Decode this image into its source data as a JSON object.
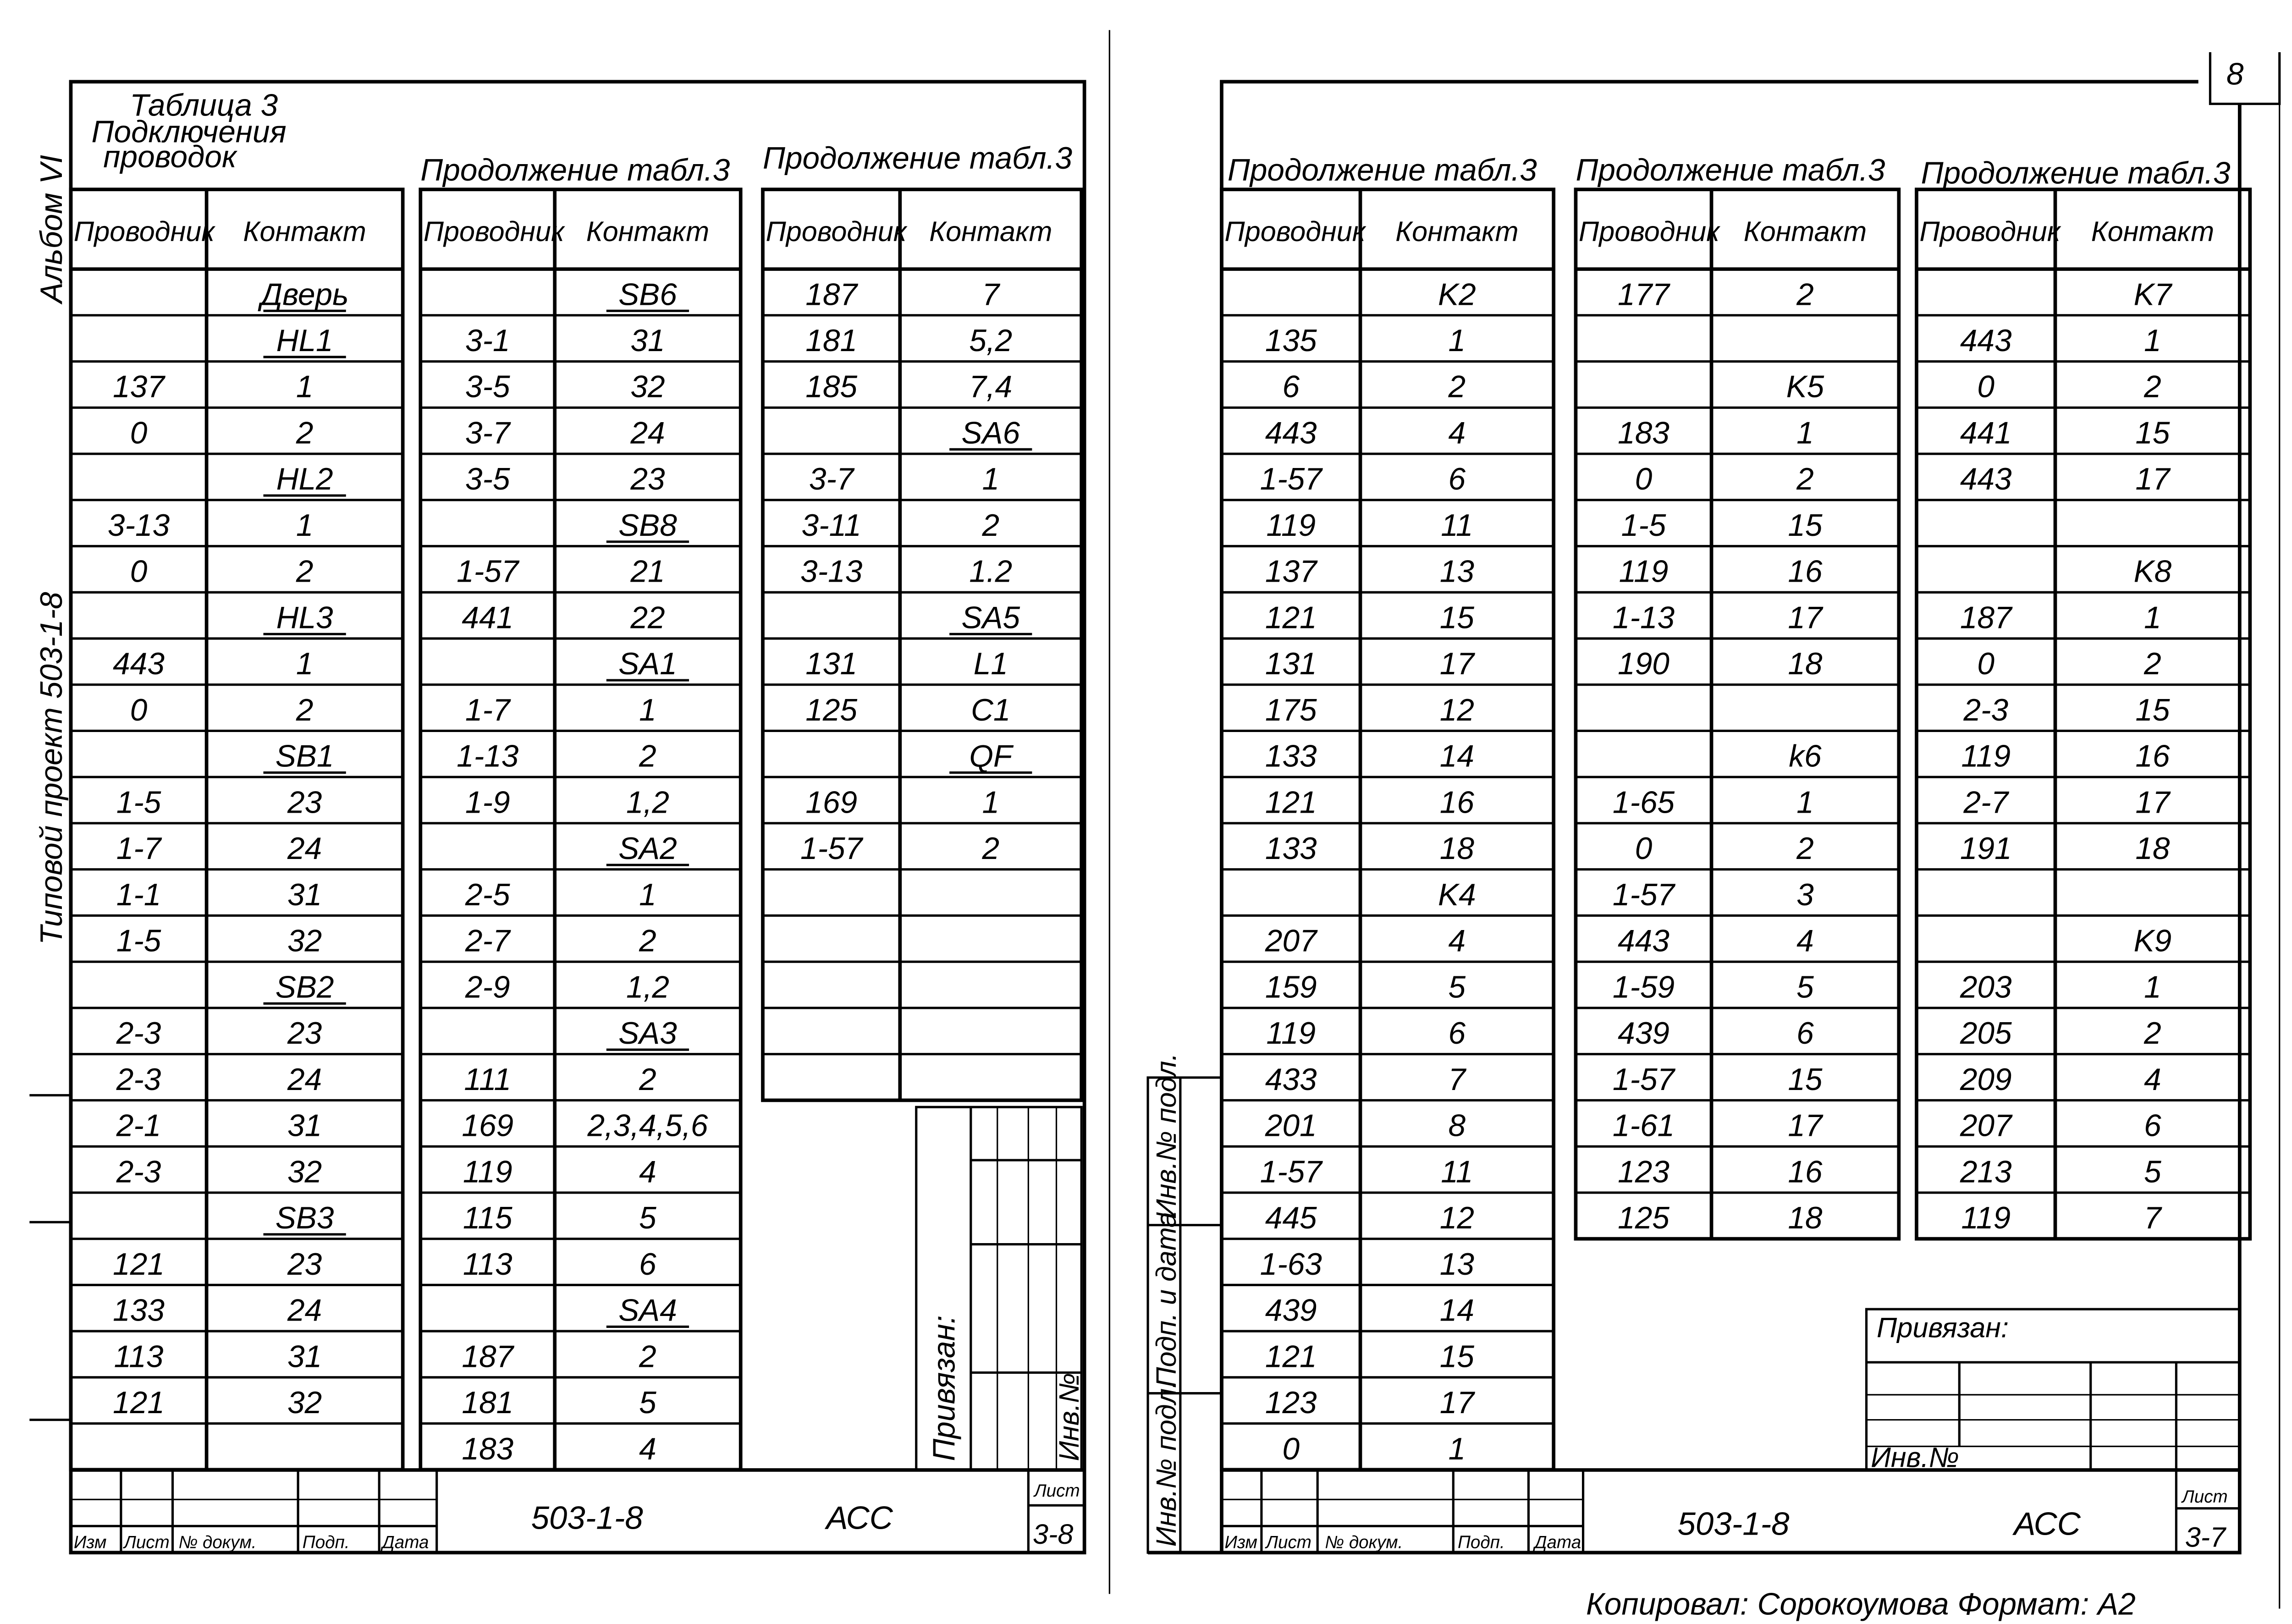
{
  "page_number": "8",
  "left_sheet": {
    "margin_album": "Альбом VI",
    "margin_project": "Типовой проект 503-1-8",
    "table_caption": [
      "Таблица 3",
      "Подключения",
      "проводок"
    ],
    "continuation_caption": "Продолжение табл.3",
    "column_headers": {
      "wire": "Проводник",
      "contact": "Контакт"
    },
    "tables": [
      {
        "rows": [
          [
            "",
            "Дверь"
          ],
          [
            "",
            "HL1"
          ],
          [
            "137",
            "1"
          ],
          [
            "0",
            "2"
          ],
          [
            "",
            "HL2"
          ],
          [
            "3-13",
            "1"
          ],
          [
            "0",
            "2"
          ],
          [
            "",
            "HL3"
          ],
          [
            "443",
            "1"
          ],
          [
            "0",
            "2"
          ],
          [
            "",
            "SB1"
          ],
          [
            "1-5",
            "23"
          ],
          [
            "1-7",
            "24"
          ],
          [
            "1-1",
            "31"
          ],
          [
            "1-5",
            "32"
          ],
          [
            "",
            "SB2"
          ],
          [
            "2-3",
            "23"
          ],
          [
            "2-3",
            "24"
          ],
          [
            "2-1",
            "31"
          ],
          [
            "2-3",
            "32"
          ],
          [
            "",
            "SB3"
          ],
          [
            "121",
            "23"
          ],
          [
            "133",
            "24"
          ],
          [
            "113",
            "31"
          ],
          [
            "121",
            "32"
          ],
          [
            "",
            ""
          ]
        ]
      },
      {
        "rows": [
          [
            "",
            "SB6"
          ],
          [
            "3-1",
            "31"
          ],
          [
            "3-5",
            "32"
          ],
          [
            "3-7",
            "24"
          ],
          [
            "3-5",
            "23"
          ],
          [
            "",
            "SB8"
          ],
          [
            "1-57",
            "21"
          ],
          [
            "441",
            "22"
          ],
          [
            "",
            "SA1"
          ],
          [
            "1-7",
            "1"
          ],
          [
            "1-13",
            "2"
          ],
          [
            "1-9",
            "1,2"
          ],
          [
            "",
            "SA2"
          ],
          [
            "2-5",
            "1"
          ],
          [
            "2-7",
            "2"
          ],
          [
            "2-9",
            "1,2"
          ],
          [
            "",
            "SA3"
          ],
          [
            "111",
            "2"
          ],
          [
            "169",
            "2,3,4,5,6"
          ],
          [
            "119",
            "4"
          ],
          [
            "115",
            "5"
          ],
          [
            "113",
            "6"
          ],
          [
            "",
            "SA4"
          ],
          [
            "187",
            "2"
          ],
          [
            "181",
            "5"
          ],
          [
            "183",
            "4"
          ]
        ]
      },
      {
        "rows": [
          [
            "187",
            "7"
          ],
          [
            "181",
            "5,2"
          ],
          [
            "185",
            "7,4"
          ],
          [
            "",
            "SA6"
          ],
          [
            "3-7",
            "1"
          ],
          [
            "3-11",
            "2"
          ],
          [
            "3-13",
            "1.2"
          ],
          [
            "",
            "SA5"
          ],
          [
            "131",
            "L1"
          ],
          [
            "125",
            "C1"
          ],
          [
            "",
            "QF"
          ],
          [
            "169",
            "1"
          ],
          [
            "1-57",
            "2"
          ],
          [
            "",
            ""
          ],
          [
            "",
            ""
          ],
          [
            "",
            ""
          ],
          [
            "",
            ""
          ],
          [
            "",
            ""
          ]
        ]
      }
    ],
    "stamp": {
      "bound_label": "Привязан:",
      "inv_label": "Инв.№"
    },
    "title_block": {
      "columns": [
        "Изм",
        "Лист",
        "№ докум.",
        "Подп.",
        "Дата"
      ],
      "designation": "503-1-8",
      "code": "АСС",
      "sheet_label": "Лист",
      "sheet_number": "3-8"
    }
  },
  "right_sheet": {
    "continuation_caption": "Продолжение табл.3",
    "column_headers": {
      "wire": "Проводник",
      "contact": "Контакт"
    },
    "tables": [
      {
        "rows": [
          [
            "",
            "K2"
          ],
          [
            "135",
            "1"
          ],
          [
            "6",
            "2"
          ],
          [
            "443",
            "4"
          ],
          [
            "1-57",
            "6"
          ],
          [
            "119",
            "11"
          ],
          [
            "137",
            "13"
          ],
          [
            "121",
            "15"
          ],
          [
            "131",
            "17"
          ],
          [
            "175",
            "12"
          ],
          [
            "133",
            "14"
          ],
          [
            "121",
            "16"
          ],
          [
            "133",
            "18"
          ],
          [
            "",
            "K4"
          ],
          [
            "207",
            "4"
          ],
          [
            "159",
            "5"
          ],
          [
            "119",
            "6"
          ],
          [
            "433",
            "7"
          ],
          [
            "201",
            "8"
          ],
          [
            "1-57",
            "11"
          ],
          [
            "445",
            "12"
          ],
          [
            "1-63",
            "13"
          ],
          [
            "439",
            "14"
          ],
          [
            "121",
            "15"
          ],
          [
            "123",
            "17"
          ],
          [
            "0",
            "1"
          ]
        ]
      },
      {
        "rows": [
          [
            "177",
            "2"
          ],
          [
            "",
            ""
          ],
          [
            "",
            "K5"
          ],
          [
            "183",
            "1"
          ],
          [
            "0",
            "2"
          ],
          [
            "1-5",
            "15"
          ],
          [
            "119",
            "16"
          ],
          [
            "1-13",
            "17"
          ],
          [
            "190",
            "18"
          ],
          [
            "",
            ""
          ],
          [
            "",
            "k6"
          ],
          [
            "1-65",
            "1"
          ],
          [
            "0",
            "2"
          ],
          [
            "1-57",
            "3"
          ],
          [
            "443",
            "4"
          ],
          [
            "1-59",
            "5"
          ],
          [
            "439",
            "6"
          ],
          [
            "1-57",
            "15"
          ],
          [
            "1-61",
            "17"
          ],
          [
            "123",
            "16"
          ],
          [
            "125",
            "18"
          ]
        ]
      },
      {
        "rows": [
          [
            "",
            "K7"
          ],
          [
            "443",
            "1"
          ],
          [
            "0",
            "2"
          ],
          [
            "441",
            "15"
          ],
          [
            "443",
            "17"
          ],
          [
            "",
            ""
          ],
          [
            "",
            "K8"
          ],
          [
            "187",
            "1"
          ],
          [
            "0",
            "2"
          ],
          [
            "2-3",
            "15"
          ],
          [
            "119",
            "16"
          ],
          [
            "2-7",
            "17"
          ],
          [
            "191",
            "18"
          ],
          [
            "",
            ""
          ],
          [
            "",
            "K9"
          ],
          [
            "203",
            "1"
          ],
          [
            "205",
            "2"
          ],
          [
            "209",
            "4"
          ],
          [
            "207",
            "6"
          ],
          [
            "213",
            "5"
          ],
          [
            "119",
            "7"
          ]
        ]
      }
    ],
    "side_strip": [
      "Инв.№ подл.",
      "Подп. и дата",
      "Инв.№ подл."
    ],
    "stamp": {
      "bound_label": "Привязан:",
      "inv_label": "Инв.№"
    },
    "title_block": {
      "columns": [
        "Изм",
        "Лист",
        "№ докум.",
        "Подп.",
        "Дата"
      ],
      "designation": "503-1-8",
      "code": "АСС",
      "sheet_label": "Лист",
      "sheet_number": "3-7"
    },
    "footer": "Копировал: Сорокоумова   Формат: А2"
  }
}
